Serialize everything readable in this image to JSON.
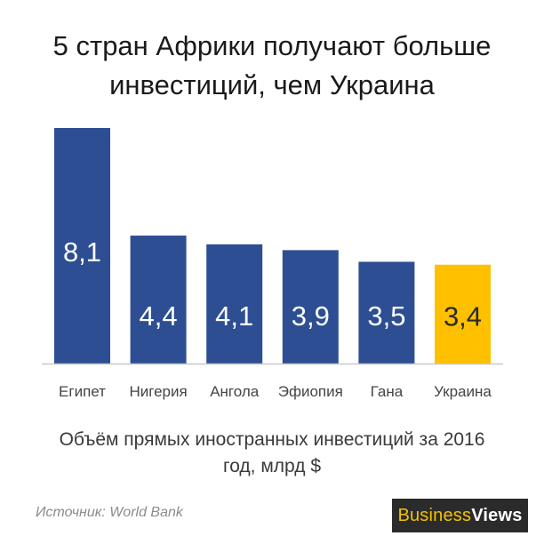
{
  "header": {
    "title_line1": "5 стран Африки получают больше",
    "title_line2": "инвестиций, чем Украина"
  },
  "chart_data": {
    "type": "bar",
    "categories": [
      "Египет",
      "Нигерия",
      "Ангола",
      "Эфиопия",
      "Гана",
      "Украина"
    ],
    "values": [
      8.1,
      4.4,
      4.1,
      3.9,
      3.5,
      3.4
    ],
    "value_labels": [
      "8,1",
      "4,4",
      "4,1",
      "3,9",
      "3,5",
      "3,4"
    ],
    "ylim": [
      0,
      8.1
    ],
    "bar_colors": [
      "#2d4e92",
      "#2d4e92",
      "#2d4e92",
      "#2d4e92",
      "#2d4e92",
      "#ffc000"
    ],
    "highlight_category": "Украина",
    "grid": false,
    "legend": "none"
  },
  "caption": {
    "line1": "Объём прямых иностранных инвестиций за 2016",
    "line2": "год, млрд $"
  },
  "source": "Источник: World Bank",
  "logo": {
    "part1": "Business",
    "part2": "Views"
  },
  "colors": {
    "bar": "#2d4e92",
    "highlight": "#ffc000",
    "axis": "#c8c8c8",
    "logo_bg": "#2b2b2b",
    "logo_accent": "#f2c200"
  }
}
